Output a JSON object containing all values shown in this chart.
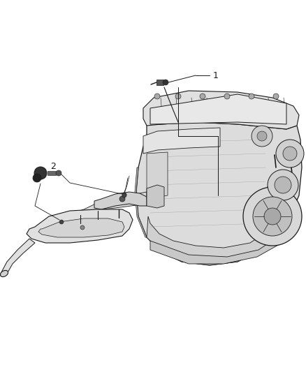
{
  "bg_color": "#ffffff",
  "fig_width": 4.38,
  "fig_height": 5.33,
  "dpi": 100,
  "label1": "1",
  "label2": "2",
  "lc": "#1a1a1a",
  "lc_light": "#888888",
  "engine_fill": "#e8e8e8",
  "engine_dark": "#555555",
  "exhaust_fill": "#f0f0f0",
  "exhaust_mid": "#cccccc"
}
